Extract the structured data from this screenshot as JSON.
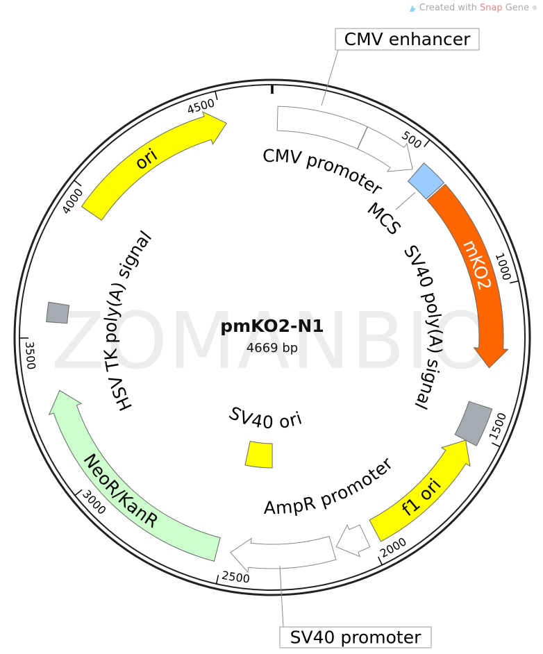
{
  "plasmid": {
    "name": "pmKO2-N1",
    "length_label": "4669 bp",
    "length_bp": 4669,
    "watermark": "ZOMANBIO"
  },
  "credit": {
    "prefix": "Created with ",
    "brand_a": "Snap",
    "brand_b": "Gene",
    "mark": "®"
  },
  "ticks": [
    {
      "bp": 500,
      "label": "500"
    },
    {
      "bp": 1000,
      "label": "1000"
    },
    {
      "bp": 1500,
      "label": "1500"
    },
    {
      "bp": 2000,
      "label": "2000"
    },
    {
      "bp": 2500,
      "label": "2500"
    },
    {
      "bp": 3000,
      "label": "3000"
    },
    {
      "bp": 3500,
      "label": "3500"
    },
    {
      "bp": 4000,
      "label": "4000"
    },
    {
      "bp": 4500,
      "label": "4500"
    }
  ],
  "features": [
    {
      "name": "CMV enhancer",
      "start": 18,
      "end": 315,
      "direction": "none",
      "color": "#ffffff",
      "label_style": "callout"
    },
    {
      "name": "CMV promoter",
      "start": 316,
      "end": 517,
      "direction": "forward",
      "color": "#ffffff",
      "label_style": "inner"
    },
    {
      "name": "MCS",
      "start": 532,
      "end": 623,
      "direction": "none",
      "color": "#99ccff",
      "label_style": "inner"
    },
    {
      "name": "mKO2",
      "start": 629,
      "end": 1271,
      "direction": "forward",
      "color": "#ff6600",
      "label_style": "on-feature",
      "text_color": "#ffffff"
    },
    {
      "name": "SV40 poly(A) signal",
      "start": 1401,
      "end": 1530,
      "direction": "none",
      "color": "#a6abb2",
      "label_style": "inner"
    },
    {
      "name": "f1 ori",
      "start": 1530,
      "end": 1971,
      "direction": "reverse",
      "color": "#ffff00",
      "label_style": "on-feature",
      "text_color": "#000000"
    },
    {
      "name": "AmpR promoter",
      "start": 2010,
      "end": 2114,
      "direction": "forward",
      "color": "#ffffff",
      "label_style": "inner"
    },
    {
      "name": "SV40 promoter",
      "start": 2127,
      "end": 2477,
      "direction": "forward",
      "color": "#ffffff",
      "label_style": "callout"
    },
    {
      "name": "NeoR/KanR",
      "start": 2523,
      "end": 3320,
      "direction": "forward",
      "color": "#ccffcc",
      "label_style": "on-feature",
      "text_color": "#000000"
    },
    {
      "name": "HSV TK poly(A) signal",
      "start": 3553,
      "end": 3618,
      "direction": "none",
      "color": "#a6abb2",
      "label_style": "inner"
    },
    {
      "name": "ori",
      "start": 3949,
      "end": 4513,
      "direction": "forward",
      "color": "#ffff00",
      "label_style": "on-feature",
      "text_color": "#000000"
    },
    {
      "name": "SV40 ori",
      "start": 2334,
      "end": 2490,
      "direction": "none",
      "color": "#ffff00",
      "label_style": "inner-ring"
    }
  ]
}
